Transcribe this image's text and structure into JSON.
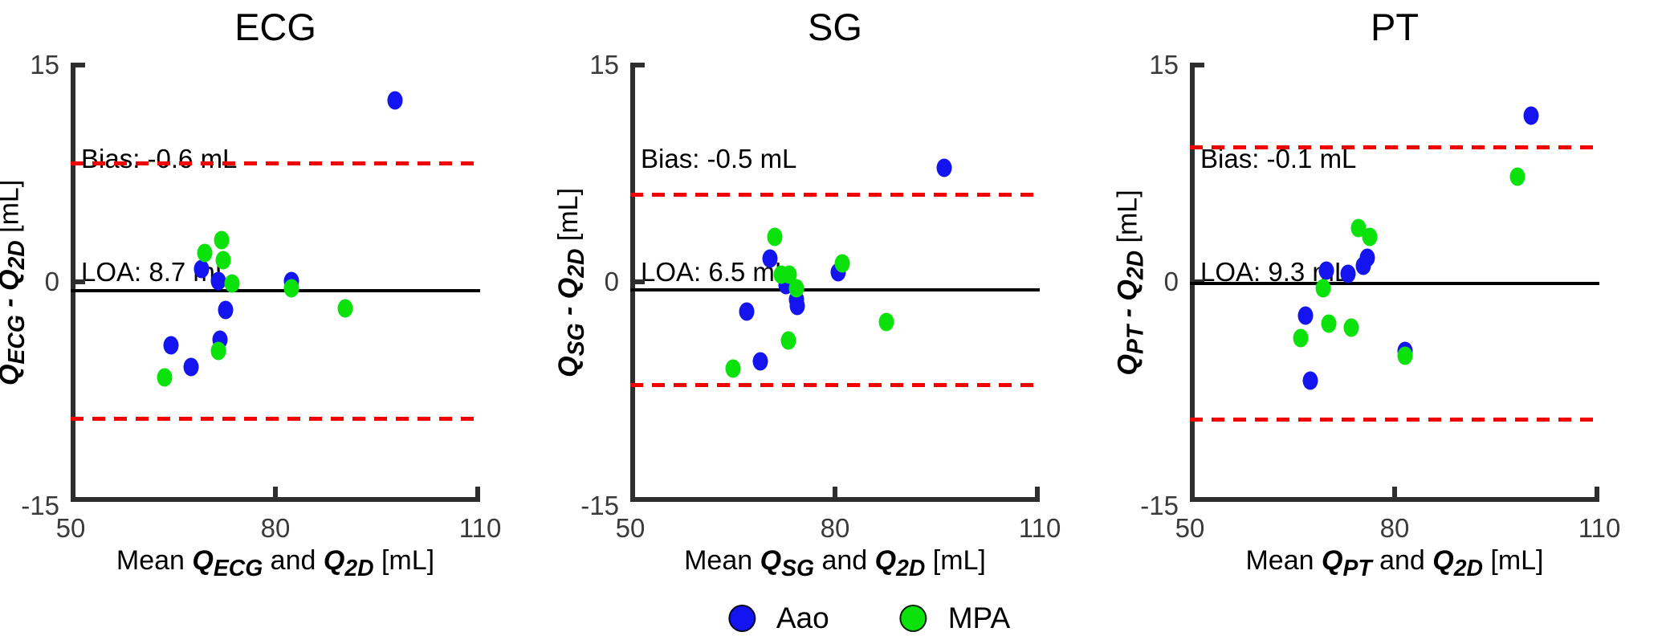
{
  "figure": {
    "background": "#ffffff",
    "style": {
      "axis_color": "#2e2e2e",
      "tick_label_color": "#3a3a3a",
      "bias_line_color": "#000000",
      "loa_line_color": "#f40000",
      "marker_blue": "#1414f0",
      "marker_green": "#0be20b"
    },
    "legend": {
      "items": [
        {
          "label": "Aao",
          "color": "#1414f0"
        },
        {
          "label": "MPA",
          "color": "#0be20b"
        }
      ]
    }
  },
  "chart_data": [
    {
      "type": "scatter",
      "title": "ECG",
      "annotation": {
        "bias_label": "Bias: -0.6 mL",
        "loa_label": "LOA: 8.7 mL"
      },
      "bias": -0.6,
      "loa": 8.7,
      "xlim": [
        50,
        110
      ],
      "ylim": [
        -15,
        15
      ],
      "xticks": [
        "50",
        "80",
        "110"
      ],
      "yticks": [
        "15",
        "0",
        "-15"
      ],
      "grid": false,
      "xlabel": {
        "prefix": "Mean ",
        "q1": "Q",
        "q1_sub": "ECG",
        "mid": " and ",
        "q2": "Q",
        "q2_sub": "2D",
        "suffix": " [mL]"
      },
      "ylabel": {
        "q1": "Q",
        "q1_sub": "ECG",
        "mid": " - ",
        "q2": "Q",
        "q2_sub": "2D",
        "suffix": " [mL]"
      },
      "series": [
        {
          "name": "Aao",
          "color": "#1414f0",
          "points": [
            [
              97.5,
              12.4
            ],
            [
              69.2,
              0.9
            ],
            [
              71.7,
              0.1
            ],
            [
              82.3,
              0.1
            ],
            [
              72.7,
              -1.9
            ],
            [
              71.9,
              -3.9
            ],
            [
              64.7,
              -4.3
            ],
            [
              67.6,
              -5.8
            ]
          ]
        },
        {
          "name": "MPA",
          "color": "#0be20b",
          "points": [
            [
              72.1,
              2.9
            ],
            [
              69.7,
              2.0
            ],
            [
              72.4,
              1.5
            ],
            [
              73.6,
              -0.1
            ],
            [
              82.3,
              -0.4
            ],
            [
              90.2,
              -1.8
            ],
            [
              71.6,
              -4.7
            ],
            [
              63.8,
              -6.5
            ]
          ]
        }
      ]
    },
    {
      "type": "scatter",
      "title": "SG",
      "annotation": {
        "bias_label": "Bias: -0.5 mL",
        "loa_label": "LOA: 6.5 mL"
      },
      "bias": -0.5,
      "loa": 6.5,
      "xlim": [
        50,
        110
      ],
      "ylim": [
        -15,
        15
      ],
      "xticks": [
        "50",
        "80",
        "110"
      ],
      "yticks": [
        "15",
        "0",
        "-15"
      ],
      "grid": false,
      "xlabel": {
        "prefix": "Mean ",
        "q1": "Q",
        "q1_sub": "SG",
        "mid": " and ",
        "q2": "Q",
        "q2_sub": "2D",
        "suffix": " [mL]"
      },
      "ylabel": {
        "q1": "Q",
        "q1_sub": "SG",
        "mid": " - ",
        "q2": "Q",
        "q2_sub": "2D",
        "suffix": " [mL]"
      },
      "series": [
        {
          "name": "Aao",
          "color": "#1414f0",
          "points": [
            [
              96.0,
              7.8
            ],
            [
              70.5,
              1.6
            ],
            [
              80.5,
              0.7
            ],
            [
              72.8,
              -0.2
            ],
            [
              74.3,
              -1.2
            ],
            [
              74.5,
              -1.6
            ],
            [
              67.0,
              -2.0
            ],
            [
              69.0,
              -5.4
            ]
          ]
        },
        {
          "name": "MPA",
          "color": "#0be20b",
          "points": [
            [
              71.2,
              3.1
            ],
            [
              72.1,
              0.5
            ],
            [
              73.3,
              0.5
            ],
            [
              81.0,
              1.3
            ],
            [
              74.4,
              -0.4
            ],
            [
              87.5,
              -2.7
            ],
            [
              73.2,
              -4.0
            ],
            [
              65.0,
              -5.9
            ]
          ]
        }
      ]
    },
    {
      "type": "scatter",
      "title": "PT",
      "annotation": {
        "bias_label": "Bias: -0.1 mL",
        "loa_label": "LOA: 9.3 mL"
      },
      "bias": -0.1,
      "loa": 9.3,
      "xlim": [
        50,
        110
      ],
      "ylim": [
        -15,
        15
      ],
      "xticks": [
        "50",
        "80",
        "110"
      ],
      "yticks": [
        "15",
        "0",
        "-15"
      ],
      "grid": false,
      "xlabel": {
        "prefix": "Mean ",
        "q1": "Q",
        "q1_sub": "PT",
        "mid": " and ",
        "q2": "Q",
        "q2_sub": "2D",
        "suffix": " [mL]"
      },
      "ylabel": {
        "q1": "Q",
        "q1_sub": "PT",
        "mid": " - ",
        "q2": "Q",
        "q2_sub": "2D",
        "suffix": " [mL]"
      },
      "series": [
        {
          "name": "Aao",
          "color": "#1414f0",
          "points": [
            [
              100.0,
              11.4
            ],
            [
              76.0,
              1.7
            ],
            [
              75.4,
              1.1
            ],
            [
              70.0,
              0.8
            ],
            [
              73.2,
              0.6
            ],
            [
              66.9,
              -2.3
            ],
            [
              81.5,
              -4.7
            ],
            [
              67.6,
              -6.7
            ]
          ]
        },
        {
          "name": "MPA",
          "color": "#0be20b",
          "points": [
            [
              98.0,
              7.2
            ],
            [
              74.7,
              3.7
            ],
            [
              76.3,
              3.1
            ],
            [
              69.5,
              -0.4
            ],
            [
              70.3,
              -2.8
            ],
            [
              73.6,
              -3.1
            ],
            [
              66.2,
              -3.8
            ],
            [
              81.5,
              -5.0
            ]
          ]
        }
      ]
    }
  ]
}
